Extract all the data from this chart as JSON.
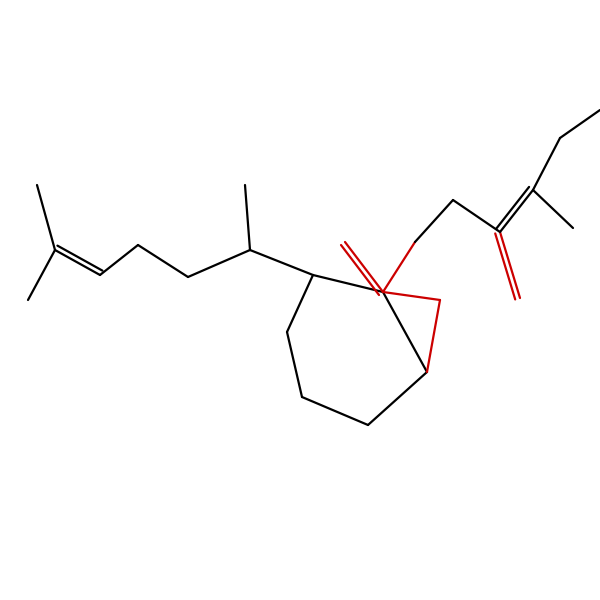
{
  "background_color": "#ffffff",
  "bond_color": "#000000",
  "oxygen_color": "#cc0000",
  "line_width": 1.6,
  "fig_width": 6.0,
  "fig_height": 6.0,
  "dpi": 100
}
